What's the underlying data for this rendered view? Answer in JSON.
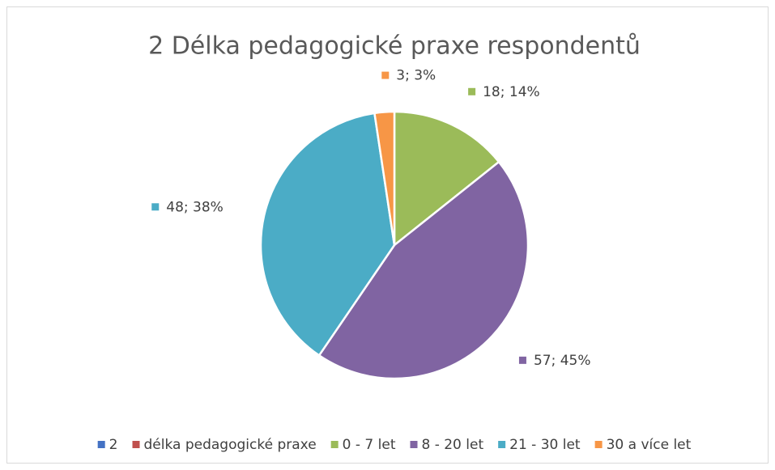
{
  "chart_data": {
    "type": "pie",
    "title": "2  Délka pedagogické praxe respondentů",
    "categories": [
      "2",
      "délka pedagogické praxe",
      "0 - 7 let",
      "8 - 20 let",
      "21 - 30 let",
      "30 a více let"
    ],
    "values": [
      null,
      null,
      18,
      57,
      48,
      3
    ],
    "value_labels": [
      null,
      null,
      "18; 14%",
      "57; 45%",
      "48; 38%",
      "3; 3%"
    ],
    "colors": [
      "#4472c4",
      "#c0504d",
      "#9bbb59",
      "#8064a2",
      "#4bacc6",
      "#f79646"
    ],
    "legend": "bottom"
  }
}
